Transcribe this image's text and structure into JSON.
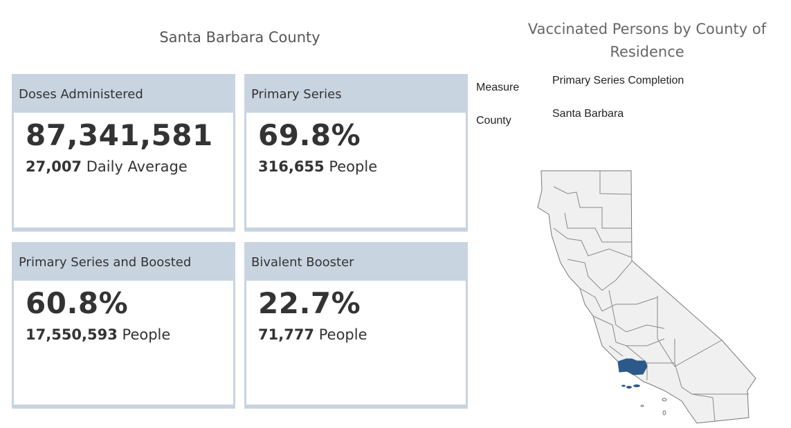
{
  "header": {
    "title": "Santa Barbara County"
  },
  "cards": [
    {
      "title": "Doses Administered",
      "value": "87,341,581",
      "sub_value": "27,007",
      "sub_label": "Daily Average"
    },
    {
      "title": "Primary Series",
      "value": "69.8%",
      "sub_value": "316,655",
      "sub_label": "People"
    },
    {
      "title": "Primary Series and Boosted",
      "value": "60.8%",
      "sub_value": "17,550,593",
      "sub_label": "People"
    },
    {
      "title": "Bivalent Booster",
      "value": "22.7%",
      "sub_value": "71,777",
      "sub_label": "People"
    }
  ],
  "map": {
    "title": "Vaccinated Persons by County of Residence",
    "measure_label": "Measure",
    "measure_value": "Primary Series Completion",
    "county_label": "County",
    "county_value": "Santa Barbara",
    "highlight_color": "#2b5a8a",
    "base_color": "#f0f0f0"
  }
}
